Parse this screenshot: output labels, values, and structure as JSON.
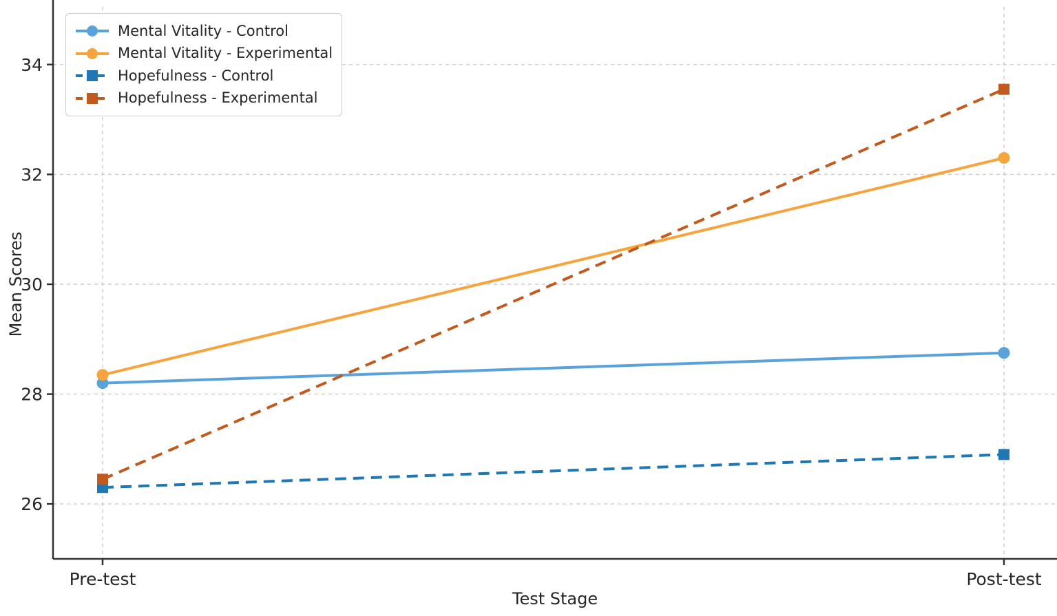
{
  "figure": {
    "background": "#ffffff",
    "text_color": "#262626",
    "spine_color": "#333333",
    "grid_color": "#cccccc"
  },
  "chart_data": {
    "type": "line",
    "title": "",
    "xlabel": "Test Stage",
    "ylabel": "Mean Scores",
    "categories": [
      "Pre-test",
      "Post-test"
    ],
    "yticks": [
      26,
      28,
      30,
      32,
      34
    ],
    "ylim": [
      25.0,
      35.05
    ],
    "grid": true,
    "legend_position": "upper-left",
    "series": [
      {
        "name": "Mental Vitality - Control",
        "values": [
          28.2,
          28.75
        ],
        "color": "#59A3DA",
        "line_style": "solid",
        "marker": "circle"
      },
      {
        "name": "Mental Vitality - Experimental",
        "values": [
          28.35,
          32.3
        ],
        "color": "#F6A53E",
        "line_style": "solid",
        "marker": "circle"
      },
      {
        "name": "Hopefulness - Control",
        "values": [
          26.3,
          26.9
        ],
        "color": "#1F77B4",
        "line_style": "dashed",
        "marker": "square"
      },
      {
        "name": "Hopefulness - Experimental",
        "values": [
          26.45,
          33.55
        ],
        "color": "#C05A1E",
        "line_style": "dashed",
        "marker": "square"
      }
    ]
  }
}
